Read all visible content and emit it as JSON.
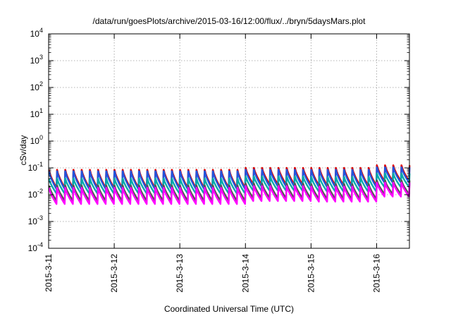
{
  "chart_data": {
    "type": "line",
    "title": "/data/run/goesPlots/archive/2015-03-16/12:00/flux/../bryn/5daysMars.plot",
    "xlabel": "Coordinated Universal Time (UTC)",
    "ylabel": "cSv/day",
    "yscale": "log",
    "ylim_exponent": [
      -4,
      4
    ],
    "ytick_labels": [
      {
        "base": "10",
        "exp": "-4"
      },
      {
        "base": "10",
        "exp": "-3"
      },
      {
        "base": "10",
        "exp": "-2"
      },
      {
        "base": "10",
        "exp": "-1"
      },
      {
        "base": "10",
        "exp": "0"
      },
      {
        "base": "10",
        "exp": "1"
      },
      {
        "base": "10",
        "exp": "2"
      },
      {
        "base": "10",
        "exp": "3"
      },
      {
        "base": "10",
        "exp": "4"
      }
    ],
    "xlim": [
      "2015-03-11",
      "2015-03-16T12:00"
    ],
    "xtick_labels": [
      "2015-3-11",
      "2015-3-12",
      "2015-3-13",
      "2015-3-14",
      "2015-3-15",
      "2015-3-16"
    ],
    "grid": true,
    "sawtooth_cycles_per_day": 8,
    "series": [
      {
        "color": "#dd0000",
        "peak": [
          0.085,
          0.085,
          0.085,
          0.1,
          0.1,
          0.125
        ],
        "trough": [
          0.018,
          0.018,
          0.018,
          0.024,
          0.022,
          0.032
        ]
      },
      {
        "color": "#2255dd",
        "peak": [
          0.075,
          0.075,
          0.075,
          0.085,
          0.085,
          0.105
        ],
        "trough": [
          0.016,
          0.016,
          0.016,
          0.02,
          0.019,
          0.028
        ]
      },
      {
        "color": "#00aaaa",
        "peak": [
          0.04,
          0.04,
          0.04,
          0.048,
          0.046,
          0.062
        ],
        "trough": [
          0.011,
          0.011,
          0.011,
          0.014,
          0.013,
          0.019
        ]
      },
      {
        "color": "#555555",
        "peak": [
          0.022,
          0.022,
          0.022,
          0.026,
          0.025,
          0.034
        ],
        "trough": [
          0.006,
          0.006,
          0.006,
          0.0075,
          0.007,
          0.0105
        ]
      },
      {
        "color": "#ff00ff",
        "peak": [
          0.018,
          0.018,
          0.018,
          0.021,
          0.02,
          0.028
        ],
        "trough": [
          0.0045,
          0.0045,
          0.0045,
          0.0058,
          0.0055,
          0.0085
        ]
      }
    ]
  }
}
